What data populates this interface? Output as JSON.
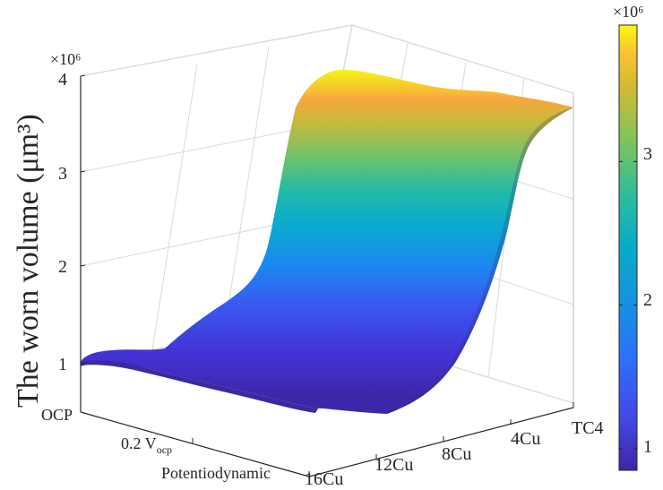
{
  "chart_data": {
    "type": "surface",
    "title": "",
    "zlabel": "The worn volume (μm³)",
    "z_multiplier": "×10⁶",
    "x_categories": [
      "OCP",
      "0.2 V_ocp",
      "Potentiodynamic"
    ],
    "y_categories": [
      "16Cu",
      "12Cu",
      "8Cu",
      "4Cu",
      "TC4"
    ],
    "z_ticks": [
      "1",
      "2",
      "3",
      "4"
    ],
    "zlim": [
      0.7,
      4.0
    ],
    "grid": true,
    "colormap": "parula",
    "colorbar": {
      "multiplier": "×10⁶",
      "ticks": [
        "1",
        "2",
        "3"
      ],
      "range": [
        0.85,
        3.95
      ]
    },
    "approx_values": {
      "note_rows": "rows follow x_categories, columns follow y_categories",
      "z": [
        [
          0.92,
          0.9,
          1.4,
          3.5,
          3.7
        ],
        [
          0.88,
          0.86,
          1.4,
          3.5,
          3.6
        ],
        [
          0.86,
          0.85,
          1.3,
          3.3,
          3.5
        ]
      ]
    }
  }
}
